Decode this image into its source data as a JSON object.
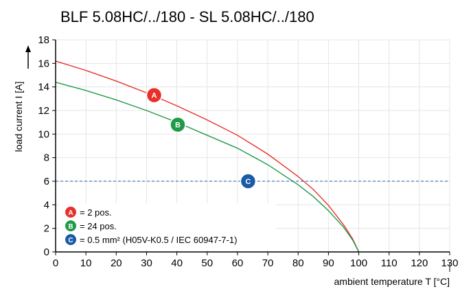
{
  "chart_data": {
    "type": "line",
    "title": "BLF 5.08HC/../180 - SL 5.08HC/../180",
    "xlabel": "ambient temperature T [°C]",
    "ylabel": "load current I [A]",
    "xlim": [
      0,
      130
    ],
    "ylim": [
      0,
      18
    ],
    "xticks": [
      0,
      10,
      20,
      30,
      40,
      50,
      60,
      70,
      80,
      90,
      100,
      110,
      120,
      130
    ],
    "yticks": [
      0,
      2,
      4,
      6,
      8,
      10,
      12,
      14,
      16,
      18
    ],
    "grid": true,
    "legend_position": "bottom-left",
    "series": [
      {
        "name": "2 pos.",
        "marker": "A",
        "color": "#e8302a",
        "x": [
          0,
          10,
          20,
          30,
          40,
          50,
          60,
          70,
          80,
          85,
          90,
          95,
          98,
          100
        ],
        "y": [
          16.2,
          15.4,
          14.5,
          13.5,
          12.4,
          11.2,
          9.9,
          8.3,
          6.4,
          5.3,
          3.95,
          2.3,
          1.1,
          0
        ]
      },
      {
        "name": "24 pos.",
        "marker": "B",
        "color": "#1f9a48",
        "x": [
          0,
          10,
          20,
          30,
          40,
          50,
          60,
          70,
          80,
          85,
          90,
          95,
          98,
          100
        ],
        "y": [
          14.4,
          13.7,
          12.9,
          12.0,
          11.0,
          9.9,
          8.8,
          7.4,
          5.7,
          4.7,
          3.5,
          2.1,
          1.0,
          0
        ]
      },
      {
        "name": "0.5 mm² (H05V-K0.5 / IEC 60947-7-1)",
        "marker": "C",
        "color": "#1a5aa6",
        "style": "dashed",
        "x": [
          0,
          130
        ],
        "y": [
          6,
          6
        ]
      }
    ],
    "marker_positions": [
      {
        "label": "A",
        "x": 32.5,
        "y": 13.3
      },
      {
        "label": "B",
        "x": 40.3,
        "y": 10.8
      },
      {
        "label": "C",
        "x": 63.5,
        "y": 6.0
      }
    ],
    "legend": [
      {
        "marker": "A",
        "text": "= 2 pos."
      },
      {
        "marker": "B",
        "text": "= 24 pos."
      },
      {
        "marker": "C",
        "text": "= 0.5 mm² (H05V-K0.5 / IEC 60947-7-1)"
      }
    ]
  }
}
